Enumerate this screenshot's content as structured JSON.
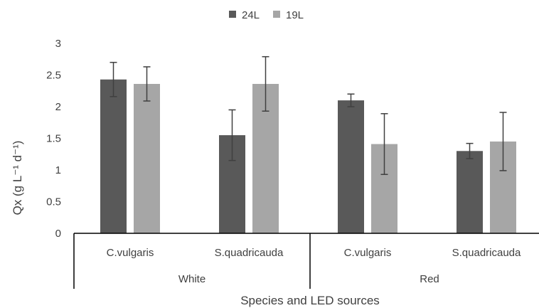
{
  "chart_data": {
    "type": "bar",
    "title": "",
    "xlabel": "Species and LED sources",
    "ylabel": "Qx (g L⁻¹ d⁻¹)",
    "ylim": [
      0,
      3
    ],
    "yticks": [
      0,
      0.5,
      1,
      1.5,
      2,
      2.5,
      3
    ],
    "ytick_labels": [
      "0",
      "0.5",
      "1",
      "1.5",
      "2",
      "2.5",
      "3"
    ],
    "groups": [
      {
        "label": "White",
        "categories": [
          "C.vulgaris",
          "S.quadricauda"
        ]
      },
      {
        "label": "Red",
        "categories": [
          "C.vulgaris",
          "S.quadricauda"
        ]
      }
    ],
    "categories": [
      "C.vulgaris",
      "S.quadricauda",
      "C.vulgaris",
      "S.quadricauda"
    ],
    "series": [
      {
        "name": "24L",
        "color": "#595959",
        "values": [
          2.43,
          1.55,
          2.1,
          1.3
        ],
        "errors": [
          0.27,
          0.4,
          0.1,
          0.12
        ]
      },
      {
        "name": "19L",
        "color": "#a6a6a6",
        "values": [
          2.36,
          2.36,
          1.41,
          1.45
        ],
        "errors": [
          0.27,
          0.43,
          0.48,
          0.46
        ]
      }
    ],
    "legend_position": "top-center",
    "grid": false
  }
}
